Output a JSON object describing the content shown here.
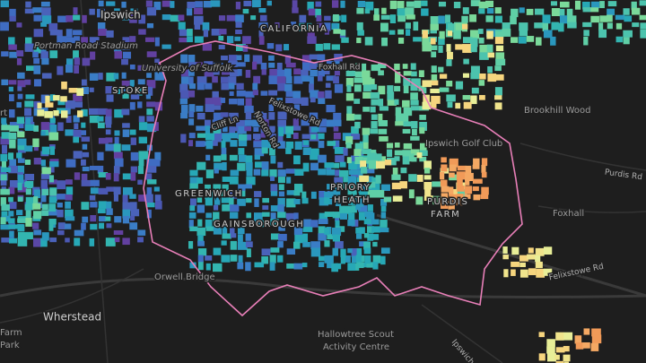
{
  "map": {
    "labels": {
      "ipswich": "Ipswich",
      "stadium": "Portman Road Stadium",
      "university": "University of Suffolk",
      "california": "CALIFORNIA",
      "foxhall_rd": "Foxhall Rd",
      "stoke": "STOKE",
      "brookhill": "Brookhill Wood",
      "cliff_ln": "Cliff Ln",
      "felixstowe_rd": "Felixstowe Rd",
      "norton_rd": "Norton Rd",
      "golf_club": "Ipswich Golf Club",
      "purdis_rd": "Purdis Rd",
      "greenwich": "GREENWICH",
      "priory": "PRIORY",
      "heath": "HEATH",
      "purdis": "PURDIS",
      "farm": "FARM",
      "foxhall": "Foxhall",
      "gainsborough": "GAINSBOROUGH",
      "orwell_bridge": "Orwell Bridge",
      "felixstowe_rd_2": "Felixstowe Rd",
      "wherstead": "Wherstead",
      "hallowtree_1": "Hallowtree Scout",
      "hallowtree_2": "Activity Centre",
      "ipswich_rd": "Ipswich Rd",
      "farm_left": "Farm",
      "park_left": "Park",
      "rt_left": "rt"
    }
  }
}
